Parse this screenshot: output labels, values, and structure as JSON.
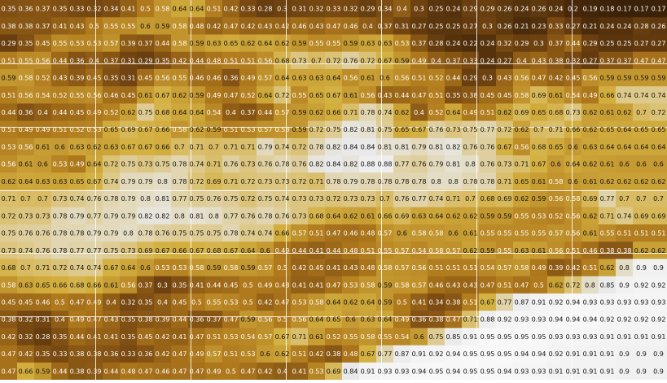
{
  "chart_data": {
    "type": "heatmap",
    "title": "",
    "xlabel": "",
    "ylabel": "",
    "n_rows": 22,
    "n_cols": 39,
    "grid": true,
    "value_range": [
      0,
      1
    ],
    "colormap": [
      "#141414",
      "#3a2008",
      "#7a4a12",
      "#b07a1c",
      "#d4b040",
      "#e8e8e8",
      "#ffffff"
    ],
    "rows": [
      [
        0.35,
        0.36,
        0.37,
        0.35,
        0.33,
        0.32,
        0.34,
        0.41,
        0.5,
        0.58,
        0.64,
        0.64,
        0.51,
        0.42,
        0.33,
        0.28,
        0.3,
        0.31,
        0.32,
        0.33,
        0.32,
        0.29,
        0.34,
        0.4,
        0.3,
        0.25,
        0.24,
        0.29,
        0.29,
        0.26,
        0.24,
        0.26,
        0.24,
        0.2,
        0.19,
        0.18,
        0.17,
        0.17,
        0.17
      ],
      [
        0.38,
        0.38,
        0.37,
        0.41,
        0.43,
        0.5,
        0.55,
        0.55,
        0.6,
        0.59,
        0.58,
        0.48,
        0.42,
        0.47,
        0.42,
        0.43,
        0.42,
        0.46,
        0.43,
        0.47,
        0.46,
        0.4,
        0.37,
        0.31,
        0.27,
        0.25,
        0.25,
        0.27,
        0.3,
        0.26,
        0.21,
        0.23,
        0.33,
        0.27,
        0.21,
        0.24,
        0.24,
        0.28,
        0.26
      ],
      [
        0.29,
        0.35,
        0.45,
        0.55,
        0.53,
        0.53,
        0.57,
        0.39,
        0.37,
        0.44,
        0.58,
        0.59,
        0.63,
        0.65,
        0.62,
        0.64,
        0.62,
        0.59,
        0.55,
        0.55,
        0.59,
        0.63,
        0.63,
        0.53,
        0.37,
        0.28,
        0.24,
        0.22,
        0.24,
        0.32,
        0.29,
        0.3,
        0.37,
        0.44,
        0.29,
        0.25,
        0.25,
        0.27,
        0.27
      ],
      [
        0.51,
        0.55,
        0.56,
        0.44,
        0.36,
        0.4,
        0.37,
        0.31,
        0.29,
        0.35,
        0.42,
        0.44,
        0.48,
        0.51,
        0.51,
        0.56,
        0.68,
        0.73,
        0.7,
        0.72,
        0.76,
        0.72,
        0.67,
        0.59,
        0.49,
        0.4,
        0.37,
        0.33,
        0.24,
        0.27,
        0.4,
        0.43,
        0.38,
        0.32,
        0.27,
        0.37,
        0.37,
        0.47,
        0.47
      ],
      [
        0.59,
        0.58,
        0.52,
        0.43,
        0.39,
        0.45,
        0.35,
        0.31,
        0.45,
        0.56,
        0.55,
        0.46,
        0.46,
        0.36,
        0.49,
        0.57,
        0.64,
        0.63,
        0.63,
        0.64,
        0.56,
        0.61,
        0.6,
        0.56,
        0.51,
        0.52,
        0.44,
        0.29,
        0.3,
        0.43,
        0.56,
        0.47,
        0.42,
        0.45,
        0.56,
        0.59,
        0.59,
        0.59,
        0.59
      ],
      [
        0.51,
        0.56,
        0.54,
        0.52,
        0.55,
        0.56,
        0.46,
        0.45,
        0.61,
        0.67,
        0.62,
        0.59,
        0.49,
        0.47,
        0.52,
        0.64,
        0.72,
        0.55,
        0.65,
        0.67,
        0.61,
        0.56,
        0.43,
        0.44,
        0.47,
        0.51,
        0.35,
        0.38,
        0.45,
        0.45,
        0.58,
        0.69,
        0.61,
        0.54,
        0.49,
        0.66,
        0.74,
        0.74,
        0.74
      ],
      [
        0.44,
        0.36,
        0.4,
        0.44,
        0.45,
        0.49,
        0.52,
        0.62,
        0.75,
        0.68,
        0.64,
        0.64,
        0.54,
        0.4,
        0.37,
        0.44,
        0.57,
        0.59,
        0.62,
        0.66,
        0.71,
        0.78,
        0.74,
        0.62,
        0.4,
        0.52,
        0.64,
        0.49,
        0.51,
        0.62,
        0.69,
        0.65,
        0.68,
        0.73,
        0.62,
        0.61,
        0.62,
        0.7,
        0.72
      ],
      [
        0.51,
        0.49,
        0.49,
        0.51,
        0.52,
        0.53,
        0.65,
        0.69,
        0.67,
        0.66,
        0.58,
        0.62,
        0.59,
        0.51,
        0.53,
        0.57,
        0.58,
        0.59,
        0.72,
        0.75,
        0.82,
        0.81,
        0.75,
        0.65,
        0.67,
        0.76,
        0.73,
        0.75,
        0.77,
        0.72,
        0.62,
        0.7,
        0.71,
        0.66,
        0.62,
        0.65,
        0.64,
        0.65,
        0.65
      ],
      [
        0.53,
        0.56,
        0.61,
        0.6,
        0.63,
        0.62,
        0.63,
        0.67,
        0.67,
        0.66,
        0.7,
        0.71,
        0.7,
        0.71,
        0.71,
        0.79,
        0.74,
        0.72,
        0.78,
        0.82,
        0.84,
        0.84,
        0.81,
        0.81,
        0.79,
        0.81,
        0.82,
        0.76,
        0.76,
        0.67,
        0.56,
        0.68,
        0.65,
        0.6,
        0.63,
        0.64,
        0.64,
        0.64,
        0.64
      ],
      [
        0.56,
        0.61,
        0.6,
        0.53,
        0.49,
        0.64,
        0.72,
        0.75,
        0.73,
        0.75,
        0.78,
        0.74,
        0.71,
        0.76,
        0.73,
        0.76,
        0.78,
        0.76,
        0.82,
        0.84,
        0.82,
        0.88,
        0.88,
        0.77,
        0.76,
        0.79,
        0.81,
        0.8,
        0.76,
        0.73,
        0.71,
        0.67,
        0.6,
        0.64,
        0.62,
        0.61,
        0.6,
        0.6,
        0.6
      ],
      [
        0.62,
        0.64,
        0.63,
        0.63,
        0.65,
        0.67,
        0.74,
        0.79,
        0.79,
        0.8,
        0.78,
        0.72,
        0.69,
        0.71,
        0.72,
        0.73,
        0.73,
        0.72,
        0.71,
        0.78,
        0.79,
        0.78,
        0.78,
        0.78,
        0.78,
        0.8,
        0.8,
        0.78,
        0.78,
        0.71,
        0.65,
        0.61,
        0.58,
        0.6,
        0.61,
        0.62,
        0.62,
        0.62,
        0.62
      ],
      [
        0.71,
        0.7,
        0.7,
        0.73,
        0.74,
        0.76,
        0.78,
        0.79,
        0.8,
        0.81,
        0.77,
        0.75,
        0.76,
        0.75,
        0.72,
        0.75,
        0.74,
        0.73,
        0.73,
        0.72,
        0.73,
        0.73,
        0.7,
        0.76,
        0.77,
        0.74,
        0.71,
        0.7,
        0.68,
        0.69,
        0.62,
        0.59,
        0.56,
        0.58,
        0.69,
        0.77,
        0.7,
        0.7,
        0.7
      ],
      [
        0.72,
        0.73,
        0.73,
        0.78,
        0.79,
        0.77,
        0.79,
        0.79,
        0.82,
        0.82,
        0.8,
        0.81,
        0.8,
        0.77,
        0.76,
        0.78,
        0.76,
        0.73,
        0.68,
        0.64,
        0.62,
        0.61,
        0.66,
        0.69,
        0.63,
        0.64,
        0.62,
        0.62,
        0.59,
        0.59,
        0.55,
        0.53,
        0.52,
        0.56,
        0.62,
        0.71,
        0.74,
        0.69,
        0.69
      ],
      [
        0.75,
        0.76,
        0.76,
        0.78,
        0.78,
        0.79,
        0.79,
        0.8,
        0.78,
        0.76,
        0.75,
        0.75,
        0.75,
        0.78,
        0.74,
        0.74,
        0.66,
        0.57,
        0.51,
        0.47,
        0.46,
        0.48,
        0.57,
        0.6,
        0.58,
        0.58,
        0.6,
        0.61,
        0.55,
        0.55,
        0.55,
        0.55,
        0.57,
        0.56,
        0.61,
        0.55,
        0.51,
        0.51,
        0.51
      ],
      [
        0.73,
        0.74,
        0.76,
        0.78,
        0.77,
        0.77,
        0.75,
        0.73,
        0.69,
        0.67,
        0.66,
        0.67,
        0.68,
        0.67,
        0.64,
        0.6,
        0.49,
        0.44,
        0.41,
        0.44,
        0.48,
        0.51,
        0.55,
        0.57,
        0.54,
        0.58,
        0.57,
        0.62,
        0.59,
        0.55,
        0.63,
        0.61,
        0.56,
        0.51,
        0.46,
        0.38,
        0.38,
        0.62,
        0.62
      ],
      [
        0.68,
        0.7,
        0.71,
        0.72,
        0.74,
        0.74,
        0.67,
        0.64,
        0.6,
        0.53,
        0.53,
        0.58,
        0.59,
        0.58,
        0.59,
        0.57,
        0.5,
        0.42,
        0.45,
        0.41,
        0.43,
        0.48,
        0.58,
        0.57,
        0.56,
        0.51,
        0.51,
        0.51,
        0.54,
        0.57,
        0.58,
        0.49,
        0.39,
        0.42,
        0.51,
        0.62,
        0.8,
        0.9,
        0.9
      ],
      [
        0.58,
        0.63,
        0.65,
        0.66,
        0.68,
        0.66,
        0.61,
        0.56,
        0.37,
        0.3,
        0.35,
        0.41,
        0.44,
        0.45,
        0.5,
        0.49,
        0.48,
        0.41,
        0.41,
        0.47,
        0.53,
        0.58,
        0.59,
        0.58,
        0.57,
        0.46,
        0.43,
        0.43,
        0.47,
        0.51,
        0.47,
        0.5,
        0.62,
        0.72,
        0.8,
        0.85,
        0.9,
        0.92,
        0.92
      ],
      [
        0.45,
        0.45,
        0.46,
        0.5,
        0.47,
        0.49,
        0.4,
        0.32,
        0.35,
        0.4,
        0.45,
        0.5,
        0.55,
        0.53,
        0.5,
        0.42,
        0.47,
        0.53,
        0.58,
        0.64,
        0.62,
        0.64,
        0.59,
        0.5,
        0.41,
        0.34,
        0.38,
        0.51,
        0.67,
        0.77,
        0.87,
        0.91,
        0.92,
        0.94,
        0.93,
        0.93,
        0.93,
        0.93,
        0.93
      ],
      [
        0.38,
        0.32,
        0.31,
        0.4,
        0.49,
        0.47,
        0.43,
        0.35,
        0.38,
        0.39,
        0.44,
        0.36,
        0.37,
        0.47,
        0.59,
        0.56,
        0.5,
        0.56,
        0.64,
        0.65,
        0.6,
        0.63,
        0.64,
        0.49,
        0.36,
        0.38,
        0.47,
        0.71,
        0.88,
        0.92,
        0.93,
        0.93,
        0.94,
        0.94,
        0.94,
        0.92,
        0.92,
        0.92,
        0.92
      ],
      [
        0.42,
        0.32,
        0.28,
        0.35,
        0.44,
        0.41,
        0.41,
        0.35,
        0.45,
        0.42,
        0.41,
        0.47,
        0.51,
        0.53,
        0.54,
        0.57,
        0.67,
        0.71,
        0.61,
        0.52,
        0.55,
        0.58,
        0.55,
        0.54,
        0.6,
        0.75,
        0.85,
        0.91,
        0.95,
        0.95,
        0.95,
        0.95,
        0.93,
        0.93,
        0.93,
        0.91,
        0.91,
        0.91,
        0.91
      ],
      [
        0.47,
        0.42,
        0.35,
        0.33,
        0.38,
        0.38,
        0.36,
        0.33,
        0.36,
        0.42,
        0.47,
        0.49,
        0.57,
        0.51,
        0.53,
        0.6,
        0.62,
        0.51,
        0.42,
        0.38,
        0.48,
        0.67,
        0.77,
        0.87,
        0.91,
        0.92,
        0.94,
        0.95,
        0.95,
        0.95,
        0.94,
        0.94,
        0.92,
        0.91,
        0.91,
        0.91,
        0.9,
        0.9,
        0.9
      ],
      [
        0.47,
        0.66,
        0.59,
        0.44,
        0.38,
        0.39,
        0.44,
        0.48,
        0.47,
        0.46,
        0.47,
        0.47,
        0.49,
        0.5,
        0.47,
        0.42,
        0.4,
        0.41,
        0.53,
        0.69,
        0.84,
        0.91,
        0.93,
        0.93,
        0.94,
        0.95,
        0.94,
        0.95,
        0.95,
        0.94,
        0.93,
        0.93,
        0.91,
        0.91,
        0.91,
        0.91,
        0.9,
        0.9,
        0.9
      ]
    ]
  }
}
